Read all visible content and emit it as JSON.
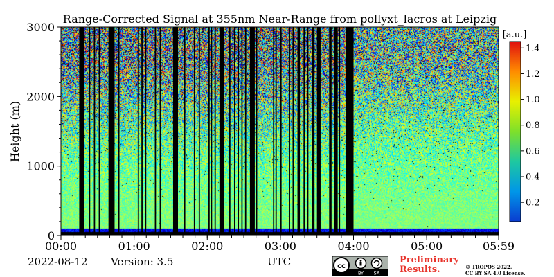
{
  "chart_data": {
    "type": "heatmap",
    "title": "Range-Corrected Signal at 355nm Near-Range from pollyxt_lacros at Leipzig",
    "xlabel": "",
    "ylabel": "Height (m)",
    "x_unit_label": "UTC",
    "x_ticks": [
      "00:00",
      "01:00",
      "02:00",
      "03:00",
      "04:00",
      "05:00",
      "05:59"
    ],
    "x_tick_minutes": [
      0,
      60,
      120,
      180,
      240,
      300,
      359
    ],
    "xlim_minutes": [
      0,
      359
    ],
    "y_ticks": [
      0,
      1000,
      2000,
      3000
    ],
    "ylim": [
      0,
      3000
    ],
    "colorbar": {
      "label": "[a.u.]",
      "ticks": [
        0.2,
        0.4,
        0.6,
        0.8,
        1.0,
        1.2,
        1.4
      ],
      "tick_labels": [
        "0.2",
        "0.4",
        "0.6",
        "0.8",
        "1.0",
        "1.2",
        "1.4"
      ],
      "range": [
        0.05,
        1.45
      ],
      "colormap": "jet",
      "colors": [
        "#0a3cd0",
        "#0096e8",
        "#1ec8a0",
        "#7ee02a",
        "#e8f000",
        "#ff8c00",
        "#e01010"
      ]
    },
    "no_signal_periods_minutes": [
      [
        15,
        19
      ],
      [
        23,
        24
      ],
      [
        27,
        28
      ],
      [
        31,
        32
      ],
      [
        39,
        44
      ],
      [
        47,
        48
      ],
      [
        63,
        64
      ],
      [
        66,
        67
      ],
      [
        69,
        70
      ],
      [
        77,
        78
      ],
      [
        81,
        82
      ],
      [
        92,
        96
      ],
      [
        101,
        102
      ],
      [
        109,
        110
      ],
      [
        113,
        114
      ],
      [
        121,
        122
      ],
      [
        123,
        124
      ],
      [
        126,
        127
      ],
      [
        130,
        134
      ],
      [
        138,
        139
      ],
      [
        142,
        143
      ],
      [
        145,
        146
      ],
      [
        148,
        149
      ],
      [
        151,
        152
      ],
      [
        155,
        159
      ],
      [
        160,
        161
      ],
      [
        174,
        175
      ],
      [
        176,
        177
      ],
      [
        180,
        181
      ],
      [
        187,
        188
      ],
      [
        190,
        191
      ],
      [
        194,
        196
      ],
      [
        199,
        200
      ],
      [
        202,
        203
      ],
      [
        206,
        208
      ],
      [
        210,
        213
      ],
      [
        220,
        222
      ],
      [
        224,
        227
      ],
      [
        228,
        229
      ],
      [
        234,
        240
      ]
    ],
    "signal_profile": {
      "near_surface_max_height_m": 100,
      "strong_layer_top_m": 500,
      "signal_decay_height_m": 2500
    }
  },
  "footer": {
    "date": "2022-08-12",
    "version": "Version: 3.5",
    "license_badge": "cc-by-sa-badge",
    "license_badge_labels": [
      "cc",
      "BY",
      "SA"
    ],
    "preliminary_line1": "Preliminary",
    "preliminary_line2": "Results.",
    "copyright_line1": "© TROPOS 2022.",
    "copyright_line2": "CC BY SA 4.0 License."
  }
}
